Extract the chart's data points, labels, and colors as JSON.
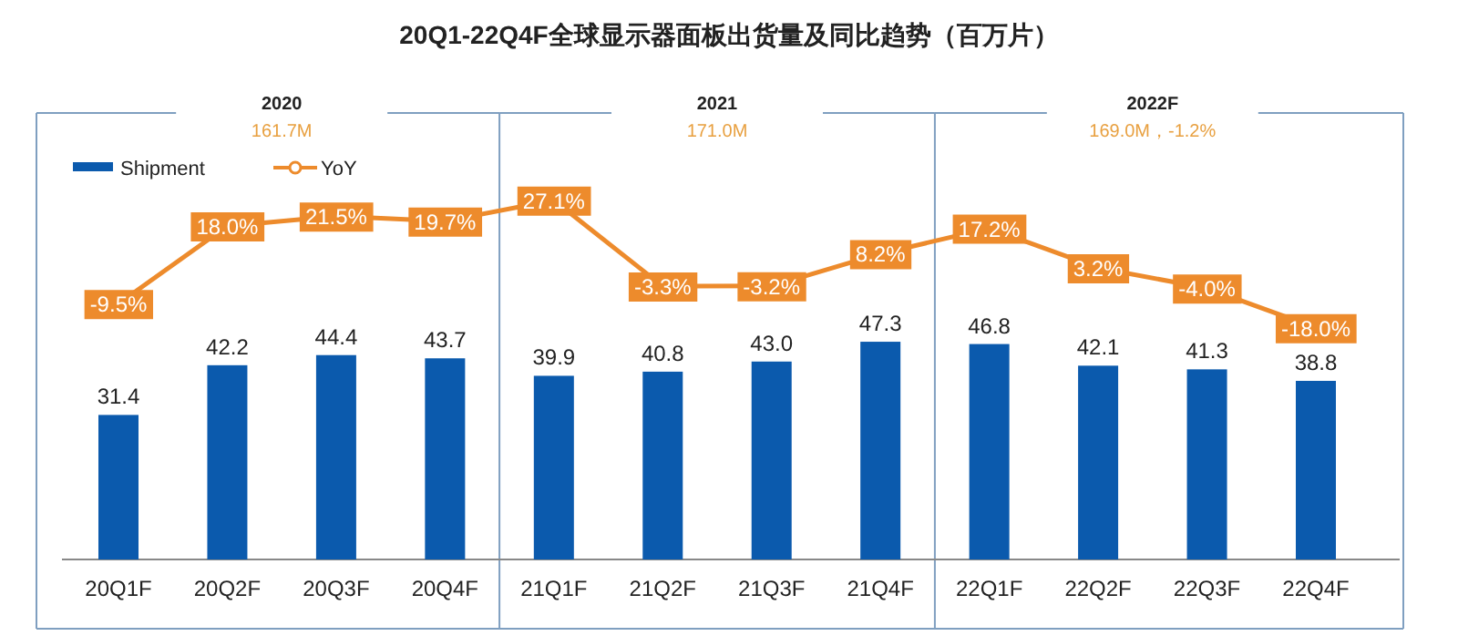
{
  "chart_data": {
    "type": "bar",
    "title": "20Q1-22Q4F全球显示器面板出货量及同比趋势（百万片）",
    "categories": [
      "20Q1F",
      "20Q2F",
      "20Q3F",
      "20Q4F",
      "21Q1F",
      "21Q2F",
      "21Q3F",
      "21Q4F",
      "22Q1F",
      "22Q2F",
      "22Q3F",
      "22Q4F"
    ],
    "series": [
      {
        "name": "Shipment",
        "color": "#0b5aad",
        "values": [
          31.4,
          42.2,
          44.4,
          43.7,
          39.9,
          40.8,
          43.0,
          47.3,
          46.8,
          42.1,
          41.3,
          38.8
        ],
        "value_labels": [
          "31.4",
          "42.2",
          "44.4",
          "43.7",
          "39.9",
          "40.8",
          "43.0",
          "47.3",
          "46.8",
          "42.1",
          "41.3",
          "38.8"
        ]
      },
      {
        "name": "YoY",
        "type": "line",
        "marker": "circle",
        "axis": "y2",
        "color": "#ed8b2c",
        "values": [
          -9.5,
          18.0,
          21.5,
          19.7,
          27.1,
          -3.3,
          -3.2,
          8.2,
          17.2,
          3.2,
          -4.0,
          -18.0
        ],
        "value_labels": [
          "-9.5%",
          "18.0%",
          "21.5%",
          "19.7%",
          "27.1%",
          "-3.3%",
          "-3.2%",
          "8.2%",
          "17.2%",
          "3.2%",
          "-4.0%",
          "-18.0%"
        ]
      }
    ],
    "annotations": [
      "2020",
      "161.7M",
      "2021",
      "171.0M",
      "2022F",
      "169.0M，-1.2%"
    ],
    "ylim": [
      0,
      97
    ],
    "y2lim": [
      -100,
      58
    ],
    "legend": "top left",
    "grid": false
  }
}
